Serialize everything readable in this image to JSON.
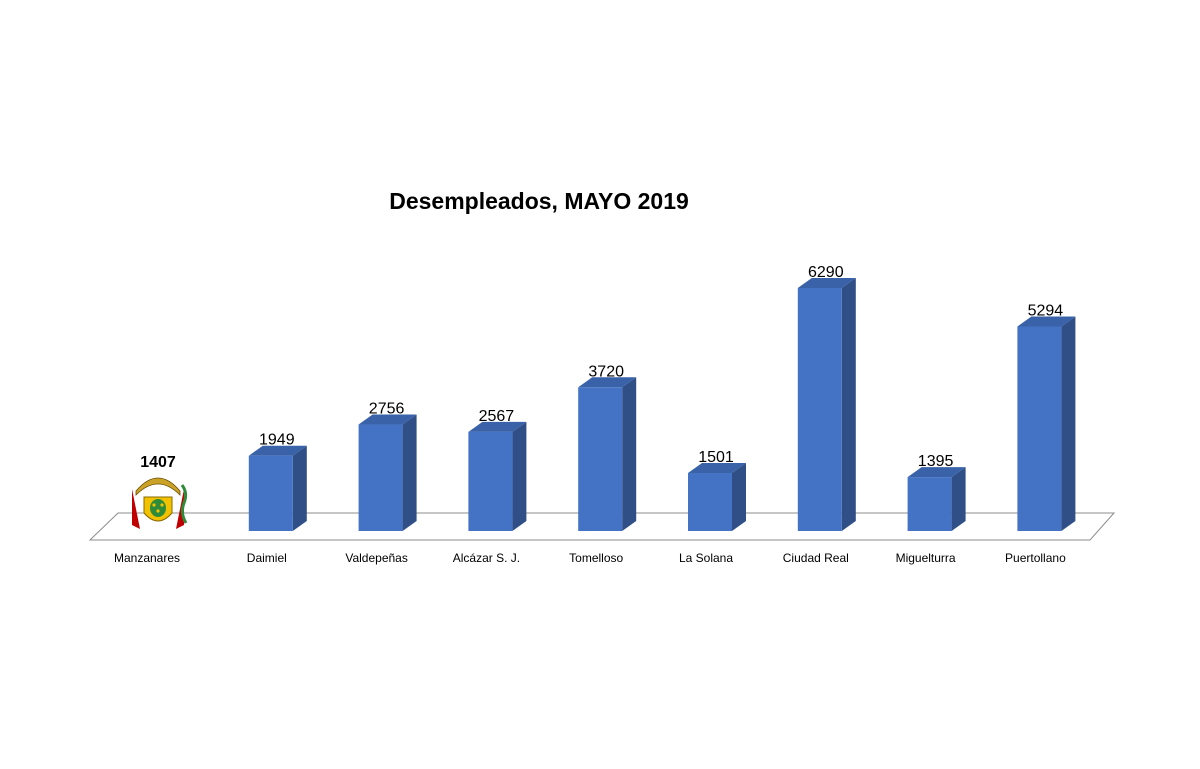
{
  "chart_data": {
    "type": "bar",
    "title": "Desempleados, MAYO 2019",
    "xlabel": "",
    "ylabel": "",
    "ylim": [
      0,
      6500
    ],
    "categories": [
      "Manzanares",
      "Daimiel",
      "Valdepeñas",
      "Alcázar S. J.",
      "Tomelloso",
      "La Solana",
      "Ciudad Real",
      "Miguelturra",
      "Puertollano"
    ],
    "values": [
      1407,
      1949,
      2756,
      2567,
      3720,
      1501,
      6290,
      1395,
      5294
    ],
    "data_labels": [
      "1407",
      "1949",
      "2756",
      "2567",
      "3720",
      "1501",
      "6290",
      "1395",
      "5294"
    ],
    "highlighted_category": "Manzanares",
    "highlight_marker": "coat-of-arms",
    "grid": false,
    "legend": "none",
    "bar_style": "3d",
    "colors": {
      "bar_front": "#4472C4",
      "bar_side": "#2F4F86",
      "bar_top": "#3A62A8",
      "floor_line": "#8C8C8C",
      "text": "#000000"
    }
  }
}
